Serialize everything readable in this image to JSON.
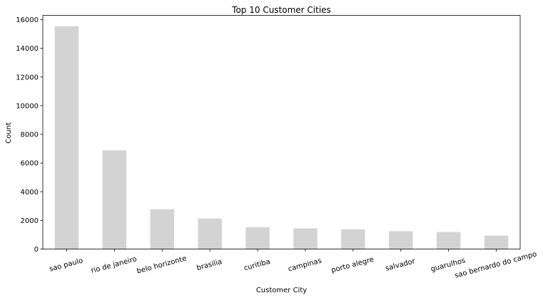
{
  "chart_data": {
    "type": "bar",
    "title": "Top 10 Customer Cities",
    "xlabel": "Customer City",
    "ylabel": "Count",
    "categories": [
      "sao paulo",
      "rio de janeiro",
      "belo horizonte",
      "brasilia",
      "curitiba",
      "campinas",
      "porto alegre",
      "salvador",
      "guarulhos",
      "sao bernardo do campo"
    ],
    "values": [
      15540,
      6882,
      2773,
      2131,
      1521,
      1444,
      1379,
      1245,
      1189,
      938
    ],
    "ylim": [
      0,
      16300
    ],
    "yticks": [
      0,
      2000,
      4000,
      6000,
      8000,
      10000,
      12000,
      14000,
      16000
    ],
    "grid": false,
    "bar_color": "#d3d3d3"
  }
}
